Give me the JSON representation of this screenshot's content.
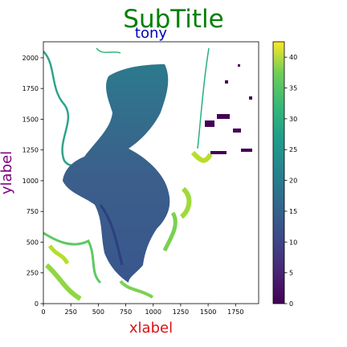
{
  "figure": {
    "suptitle": "SubTitle",
    "title": "tony",
    "colors": {
      "suptitle": "#008000",
      "title": "#0000bb",
      "xlabel": "#dd1111",
      "ylabel": "#800080",
      "colormap": [
        "#440154",
        "#3b528b",
        "#21918c",
        "#5ec962",
        "#fde725"
      ]
    }
  },
  "chart_data": {
    "type": "heatmap",
    "title": "tony",
    "xlabel": "xlabel",
    "ylabel": "ylabel",
    "xlim": [
      0,
      1960
    ],
    "ylim": [
      0,
      2130
    ],
    "xticks": [
      0,
      250,
      500,
      750,
      1000,
      1250,
      1500,
      1750
    ],
    "yticks": [
      0,
      250,
      500,
      750,
      1000,
      1250,
      1500,
      1750,
      2000
    ],
    "colorbar": {
      "range": [
        0,
        42.5
      ],
      "ticks": [
        0,
        5,
        10,
        15,
        20,
        25,
        30,
        35,
        40
      ],
      "colormap": "viridis"
    },
    "legend": "none",
    "grid": false
  }
}
